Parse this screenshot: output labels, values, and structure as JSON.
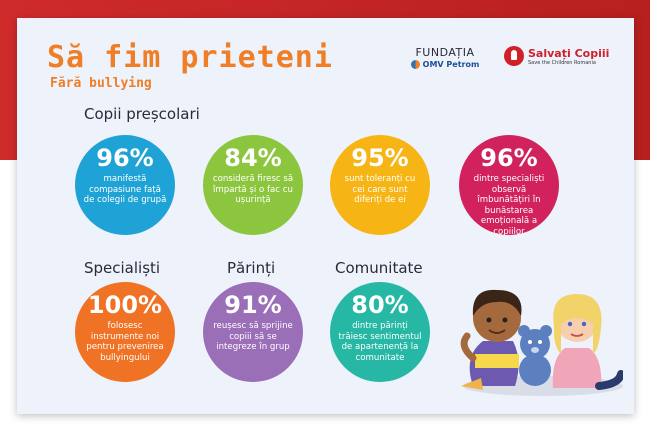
{
  "header": {
    "title": "Să fim prieteni",
    "subtitle": "Fără bullying",
    "logo_fundatia": "FUNDAȚIA",
    "logo_omv": "OMV Petrom",
    "logo_salvati": "Salvați Copiii",
    "logo_salvati_tag": "Save the Children Romania"
  },
  "sections": {
    "prescolari": "Copii preșcolari",
    "specialisti": "Specialiști",
    "parinti": "Părinți",
    "comunitate": "Comunitate"
  },
  "stats": [
    {
      "pct": "96%",
      "text": "manifestă compasiune față de colegii de grupă",
      "color": "#1fa3d6"
    },
    {
      "pct": "84%",
      "text": "consideră firesc să împartă și o fac cu ușurință",
      "color": "#8cc63f"
    },
    {
      "pct": "95%",
      "text": "sunt toleranți cu cei care sunt diferiți de ei",
      "color": "#f7b515"
    },
    {
      "pct": "96%",
      "text": "dintre specialiști observă îmbunătățiri în bunăstarea emoțională a copiilor",
      "color": "#d1225e"
    },
    {
      "pct": "100%",
      "text": "folosesc instrumente noi pentru prevenirea bullyingului",
      "color": "#f07225"
    },
    {
      "pct": "91%",
      "text": "reușesc să sprijine copiii să se integreze în grup",
      "color": "#9b6fb8"
    },
    {
      "pct": "80%",
      "text": "dintre părinți trăiesc sentimentul de apartenență la comunitate",
      "color": "#26b8a4"
    }
  ]
}
